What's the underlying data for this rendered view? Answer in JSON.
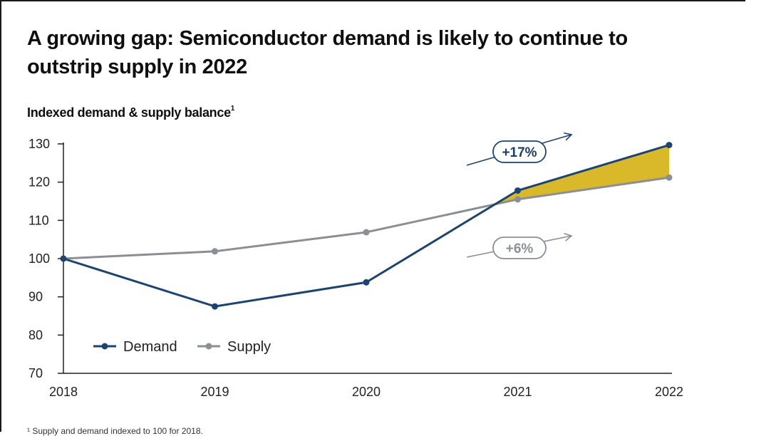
{
  "title": "A growing gap: Semiconductor demand is likely to continue to outstrip supply in 2022",
  "subtitle": "Indexed demand & supply balance",
  "subtitle_marker": "1",
  "footnote": "¹ Supply and demand indexed to 100 for 2018.",
  "colors": {
    "demand": "#1b4570",
    "supply": "#8a8f96",
    "gap_fill": "#d9b92a",
    "axis": "#222222"
  },
  "chart_data": {
    "type": "line",
    "title": "",
    "xlabel": "",
    "ylabel": "",
    "x": [
      "2018",
      "2019",
      "2020",
      "2021",
      "2022"
    ],
    "ylim": [
      70,
      130
    ],
    "yticks": [
      70,
      80,
      90,
      100,
      110,
      120,
      130
    ],
    "grid": false,
    "legend_position": "bottom-left",
    "series": [
      {
        "name": "Demand",
        "values": [
          100,
          87.5,
          93.8,
          117.8,
          129.7
        ]
      },
      {
        "name": "Supply",
        "values": [
          100,
          101.9,
          106.9,
          115.5,
          121.2
        ]
      }
    ],
    "gap_area": {
      "from": "2021",
      "to": "2022",
      "between": [
        "Demand",
        "Supply"
      ]
    },
    "annotations": [
      {
        "text": "+17%",
        "series": "Demand",
        "icon": "arrow-up-right-icon"
      },
      {
        "text": "+6%",
        "series": "Supply",
        "icon": "arrow-up-right-icon"
      }
    ]
  }
}
